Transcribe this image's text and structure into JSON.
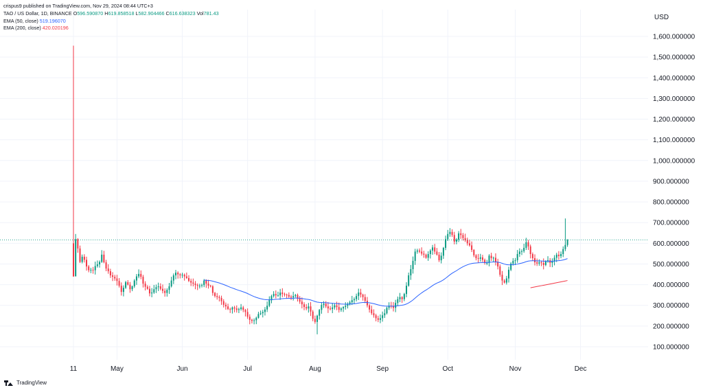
{
  "header": {
    "published": "crispus9 published on TradingView.com, Nov 29, 2024 08:44 UTC+3",
    "symbol": "TAO / US Dollar, 1D, BINANCE",
    "ohlc": {
      "o_label": "O",
      "o_value": "596.590870",
      "h_label": "H",
      "h_value": "619.858518",
      "l_label": "L",
      "l_value": "582.904466",
      "c_label": "C",
      "c_value": "616.638323",
      "vol_label": "Vol",
      "vol_value": "781.43"
    },
    "ema50_label": "EMA (50, close)",
    "ema50_value": "519.196070",
    "ema200_label": "EMA (200, close)",
    "ema200_value": "420.020196"
  },
  "footer": {
    "logo_text": "TradingView"
  },
  "colors": {
    "up": "#089981",
    "down": "#f23645",
    "ema50": "#2962ff",
    "ema200": "#f23645",
    "grid": "#f0f3fa",
    "current_price_line": "#089981"
  },
  "chart_data": {
    "type": "candlestick",
    "currency": "USD",
    "y_ticks": [
      "1,600.000000",
      "1,500.000000",
      "1,400.000000",
      "1,300.000000",
      "1,200.000000",
      "1,100.000000",
      "1,000.000000",
      "900.000000",
      "800.000000",
      "700.000000",
      "600.000000",
      "500.000000",
      "400.000000",
      "300.000000",
      "200.000000",
      "100.000000"
    ],
    "y_tick_values": [
      1600,
      1500,
      1400,
      1300,
      1200,
      1100,
      1000,
      900,
      800,
      700,
      600,
      500,
      400,
      300,
      200,
      100
    ],
    "ylim": [
      -10,
      1640
    ],
    "x_ticks": [
      "11",
      "May",
      "Jun",
      "Jul",
      "Aug",
      "Sep",
      "Oct",
      "Nov",
      "Dec"
    ],
    "x_tick_day_index": [
      0,
      20,
      50,
      80,
      111,
      142,
      172,
      203,
      233
    ],
    "current_price": 616.64,
    "closes": [
      440,
      620,
      575,
      510,
      535,
      520,
      488,
      470,
      472,
      470,
      490,
      498,
      510,
      545,
      508,
      478,
      465,
      445,
      438,
      430,
      418,
      395,
      365,
      385,
      412,
      400,
      378,
      392,
      420,
      440,
      452,
      438,
      405,
      390,
      380,
      358,
      362,
      378,
      388,
      392,
      380,
      370,
      360,
      375,
      392,
      420,
      445,
      458,
      450,
      445,
      448,
      440,
      432,
      418,
      410,
      405,
      398,
      395,
      395,
      398,
      420,
      405,
      395,
      392,
      360,
      345,
      340,
      336,
      320,
      303,
      295,
      282,
      280,
      290,
      285,
      278,
      282,
      290,
      278,
      268,
      245,
      230,
      225,
      228,
      240,
      258,
      262,
      268,
      280,
      298,
      325,
      345,
      355,
      348,
      348,
      362,
      355,
      352,
      350,
      342,
      338,
      345,
      350,
      332,
      318,
      305,
      292,
      285,
      295,
      270,
      235,
      220,
      250,
      278,
      302,
      308,
      295,
      285,
      282,
      290,
      300,
      292,
      278,
      285,
      292,
      298,
      305,
      315,
      325,
      330,
      345,
      362,
      352,
      340,
      322,
      300,
      280,
      262,
      252,
      238,
      230,
      238,
      252,
      262,
      288,
      298,
      295,
      288,
      312,
      330,
      340,
      330,
      355,
      395,
      445,
      475,
      515,
      560,
      565,
      560,
      550,
      545,
      530,
      548,
      565,
      580,
      560,
      545,
      518,
      540,
      578,
      620,
      645,
      655,
      640,
      608,
      618,
      648,
      640,
      625,
      615,
      600,
      590,
      568,
      542,
      528,
      525,
      532,
      520,
      505,
      505,
      540,
      528,
      530,
      510,
      488,
      448,
      420,
      410,
      430,
      472,
      502,
      515,
      518,
      548,
      560,
      562,
      578,
      605,
      585,
      548,
      528,
      508,
      502,
      508,
      505,
      495,
      512,
      518,
      505,
      512,
      530,
      545,
      538,
      548,
      572,
      592,
      616.64
    ],
    "ema50_start_index": 60,
    "ema200_start_index": 210,
    "ema50_last": 519.19607,
    "ema200_last": 420.020196
  }
}
